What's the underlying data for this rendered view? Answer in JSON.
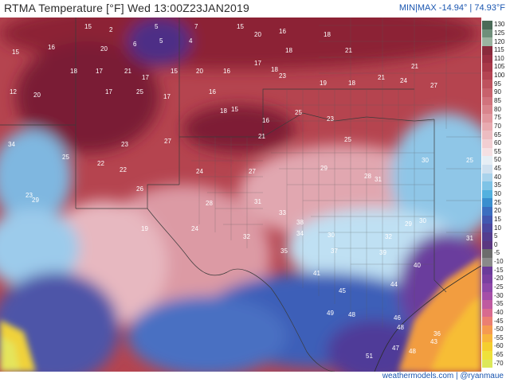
{
  "header": {
    "title": "RTMA Temperature [°F]  Wed 13:00Z23JAN2019",
    "minmax": "MIN|MAX -14.94° | 74.93°F"
  },
  "colorbar": {
    "labels": [
      "130",
      "125",
      "120",
      "115",
      "110",
      "105",
      "100",
      "95",
      "90",
      "85",
      "80",
      "75",
      "70",
      "65",
      "60",
      "55",
      "50",
      "45",
      "40",
      "35",
      "30",
      "25",
      "20",
      "15",
      "10",
      "5",
      "0",
      "-5",
      "-10",
      "-15",
      "-20",
      "-25",
      "-30",
      "-35",
      "-40",
      "-45",
      "-50",
      "-55",
      "-60",
      "-65",
      "-70"
    ],
    "colors": [
      "#4a6a57",
      "#6f8f7a",
      "#9bb3a0",
      "#8a2a3c",
      "#9b2f42",
      "#a83848",
      "#b44452",
      "#be525e",
      "#c8616c",
      "#d1727c",
      "#d9848c",
      "#e1979e",
      "#e8aab0",
      "#ecbcc1",
      "#f1ced2",
      "#f5e0e3",
      "#e6eef5",
      "#cfe0ef",
      "#a9d3ec",
      "#7ec3e6",
      "#53b1df",
      "#3a8fcf",
      "#3b6ec0",
      "#4257b0",
      "#4b479f",
      "#543c8e",
      "#5b3680",
      "#6c6c6c",
      "#8a8a8a",
      "#6b3b9a",
      "#7a3fa0",
      "#8e48a8",
      "#a54fa8",
      "#bf5aa0",
      "#d86a8f",
      "#eb7f72",
      "#f59a50",
      "#f8b53c",
      "#f5ce2f",
      "#efe13a",
      "#dce85a"
    ]
  },
  "map_values": [
    {
      "v": "15"
    },
    {
      "v": "2"
    },
    {
      "v": "5"
    },
    {
      "v": "7"
    },
    {
      "v": "15"
    },
    {
      "v": "16"
    },
    {
      "v": "18"
    },
    {
      "v": "5"
    },
    {
      "v": "6"
    },
    {
      "v": "4"
    },
    {
      "v": "20"
    },
    {
      "v": "18"
    },
    {
      "v": "21"
    },
    {
      "v": "15"
    },
    {
      "v": "16"
    },
    {
      "v": "20"
    },
    {
      "v": "18"
    },
    {
      "v": "17"
    },
    {
      "v": "21"
    },
    {
      "v": "17"
    },
    {
      "v": "15"
    },
    {
      "v": "20"
    },
    {
      "v": "16"
    },
    {
      "v": "17"
    },
    {
      "v": "18"
    },
    {
      "v": "23"
    },
    {
      "v": "19"
    },
    {
      "v": "18"
    },
    {
      "v": "21"
    },
    {
      "v": "24"
    },
    {
      "v": "27"
    },
    {
      "v": "21"
    },
    {
      "v": "12"
    },
    {
      "v": "20"
    },
    {
      "v": "17"
    },
    {
      "v": "25"
    },
    {
      "v": "17"
    },
    {
      "v": "16"
    },
    {
      "v": "18"
    },
    {
      "v": "15"
    },
    {
      "v": "16"
    },
    {
      "v": "21"
    },
    {
      "v": "25"
    },
    {
      "v": "23"
    },
    {
      "v": "25"
    },
    {
      "v": "34"
    },
    {
      "v": "25"
    },
    {
      "v": "22"
    },
    {
      "v": "23"
    },
    {
      "v": "27"
    },
    {
      "v": "22"
    },
    {
      "v": "24"
    },
    {
      "v": "27"
    },
    {
      "v": "29"
    },
    {
      "v": "28"
    },
    {
      "v": "31"
    },
    {
      "v": "30"
    },
    {
      "v": "23"
    },
    {
      "v": "29"
    },
    {
      "v": "26"
    },
    {
      "v": "28"
    },
    {
      "v": "31"
    },
    {
      "v": "33"
    },
    {
      "v": "38"
    },
    {
      "v": "34"
    },
    {
      "v": "30"
    },
    {
      "v": "32"
    },
    {
      "v": "30"
    },
    {
      "v": "19"
    },
    {
      "v": "24"
    },
    {
      "v": "32"
    },
    {
      "v": "35"
    },
    {
      "v": "37"
    },
    {
      "v": "39"
    },
    {
      "v": "40"
    },
    {
      "v": "41"
    },
    {
      "v": "45"
    },
    {
      "v": "44"
    },
    {
      "v": "49"
    },
    {
      "v": "48"
    },
    {
      "v": "46"
    },
    {
      "v": "48"
    },
    {
      "v": "51"
    },
    {
      "v": "47"
    },
    {
      "v": "48"
    },
    {
      "v": "43"
    },
    {
      "v": "36"
    },
    {
      "v": "31"
    },
    {
      "v": "29"
    },
    {
      "v": "25"
    }
  ],
  "footer": {
    "credit": "weathermodels.com | @ryanmaue"
  }
}
